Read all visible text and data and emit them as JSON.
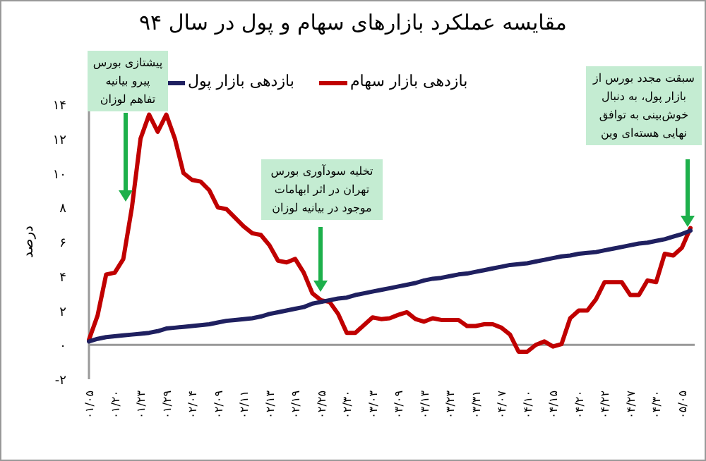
{
  "chart_data": {
    "type": "line",
    "title": "مقایسه عملکرد بازارهای سهام و پول در سال ۹۴",
    "ylabel": "درصد",
    "legend": "top",
    "categories": [
      "۰۱/۰۵",
      null,
      null,
      "۰۱/۲۰",
      null,
      null,
      "۰۱/۲۳",
      null,
      null,
      "۰۱/۲۹",
      null,
      null,
      "۰۲/۰۴",
      null,
      null,
      "۰۲/۰۹",
      null,
      null,
      "۰۲/۱۱",
      null,
      null,
      "۰۲/۱۳",
      null,
      null,
      "۰۲/۱۹",
      null,
      null,
      "۰۲/۲۵",
      null,
      null,
      "۰۲/۳۰",
      null,
      null,
      "۰۳/۰۳",
      null,
      null,
      "۰۳/۰۹",
      null,
      null,
      "۰۳/۱۳",
      null,
      null,
      "۰۳/۲۳",
      null,
      null,
      "۰۳/۳۱",
      null,
      null,
      "۰۴/۰۷",
      null,
      null,
      "۰۴/۱۰",
      null,
      null,
      "۰۴/۱۵",
      null,
      null,
      "۰۴/۲۰",
      null,
      null,
      "۰۴/۲۲",
      null,
      null,
      "۰۴/۲۷",
      null,
      null,
      "۰۴/۳۰",
      null,
      null,
      "۰۵/۰۵",
      null
    ],
    "ylim": [
      -2,
      14
    ],
    "yticks": [
      {
        "value": -2,
        "label": "-۲"
      },
      {
        "value": 0,
        "label": "۰"
      },
      {
        "value": 2,
        "label": "۲"
      },
      {
        "value": 4,
        "label": "۴"
      },
      {
        "value": 6,
        "label": "۶"
      },
      {
        "value": 8,
        "label": "۸"
      },
      {
        "value": 10,
        "label": "۱۰"
      },
      {
        "value": 12,
        "label": "۱۲"
      },
      {
        "value": 14,
        "label": "۱۴"
      }
    ],
    "series": [
      {
        "name": "بازدهی بازار سهام",
        "color": "#c00000",
        "values": [
          0.3,
          1.7,
          4.1,
          4.2,
          5.0,
          8.0,
          12.0,
          13.4,
          12.4,
          13.4,
          12.0,
          10.0,
          9.6,
          9.5,
          9.0,
          8.0,
          7.9,
          7.4,
          6.9,
          6.5,
          6.4,
          5.8,
          4.9,
          4.8,
          5.0,
          4.2,
          3.0,
          2.6,
          2.5,
          1.8,
          0.7,
          0.7,
          1.15,
          1.6,
          1.5,
          1.55,
          1.75,
          1.9,
          1.5,
          1.35,
          1.55,
          1.45,
          1.45,
          1.45,
          1.1,
          1.1,
          1.2,
          1.2,
          1.0,
          0.6,
          -0.4,
          -0.4,
          0,
          0.2,
          -0.1,
          0.05,
          1.55,
          2.0,
          2.0,
          2.65,
          3.65,
          3.65,
          3.65,
          2.9,
          2.9,
          3.75,
          3.65,
          5.3,
          5.2,
          5.65,
          6.8
        ]
      },
      {
        "name": "بازدهی بازار پول",
        "color": "#1f2060",
        "values": [
          0.2,
          0.35,
          0.45,
          0.5,
          0.55,
          0.6,
          0.65,
          0.7,
          0.8,
          0.95,
          1.0,
          1.05,
          1.1,
          1.15,
          1.2,
          1.3,
          1.4,
          1.45,
          1.5,
          1.55,
          1.65,
          1.8,
          1.9,
          2.0,
          2.1,
          2.2,
          2.4,
          2.5,
          2.6,
          2.7,
          2.75,
          2.9,
          3.0,
          3.1,
          3.2,
          3.3,
          3.4,
          3.5,
          3.6,
          3.75,
          3.85,
          3.9,
          4.0,
          4.1,
          4.15,
          4.25,
          4.35,
          4.45,
          4.55,
          4.65,
          4.7,
          4.75,
          4.85,
          4.95,
          5.05,
          5.15,
          5.2,
          5.3,
          5.35,
          5.4,
          5.5,
          5.6,
          5.7,
          5.8,
          5.9,
          5.95,
          6.05,
          6.15,
          6.3,
          6.45,
          6.65
        ]
      }
    ],
    "annotations": [
      "پیشتازی بورس پیرو بیانیه تفاهم لوزان",
      "تخلیه سودآوری بورس تهران در اثر ابهامات موجود در بیانیه لوزان",
      "سبقت مجدد بورس از بازار پول، به دنبال خوش‌بینی به توافق نهایی هسته‌ای وین"
    ]
  }
}
